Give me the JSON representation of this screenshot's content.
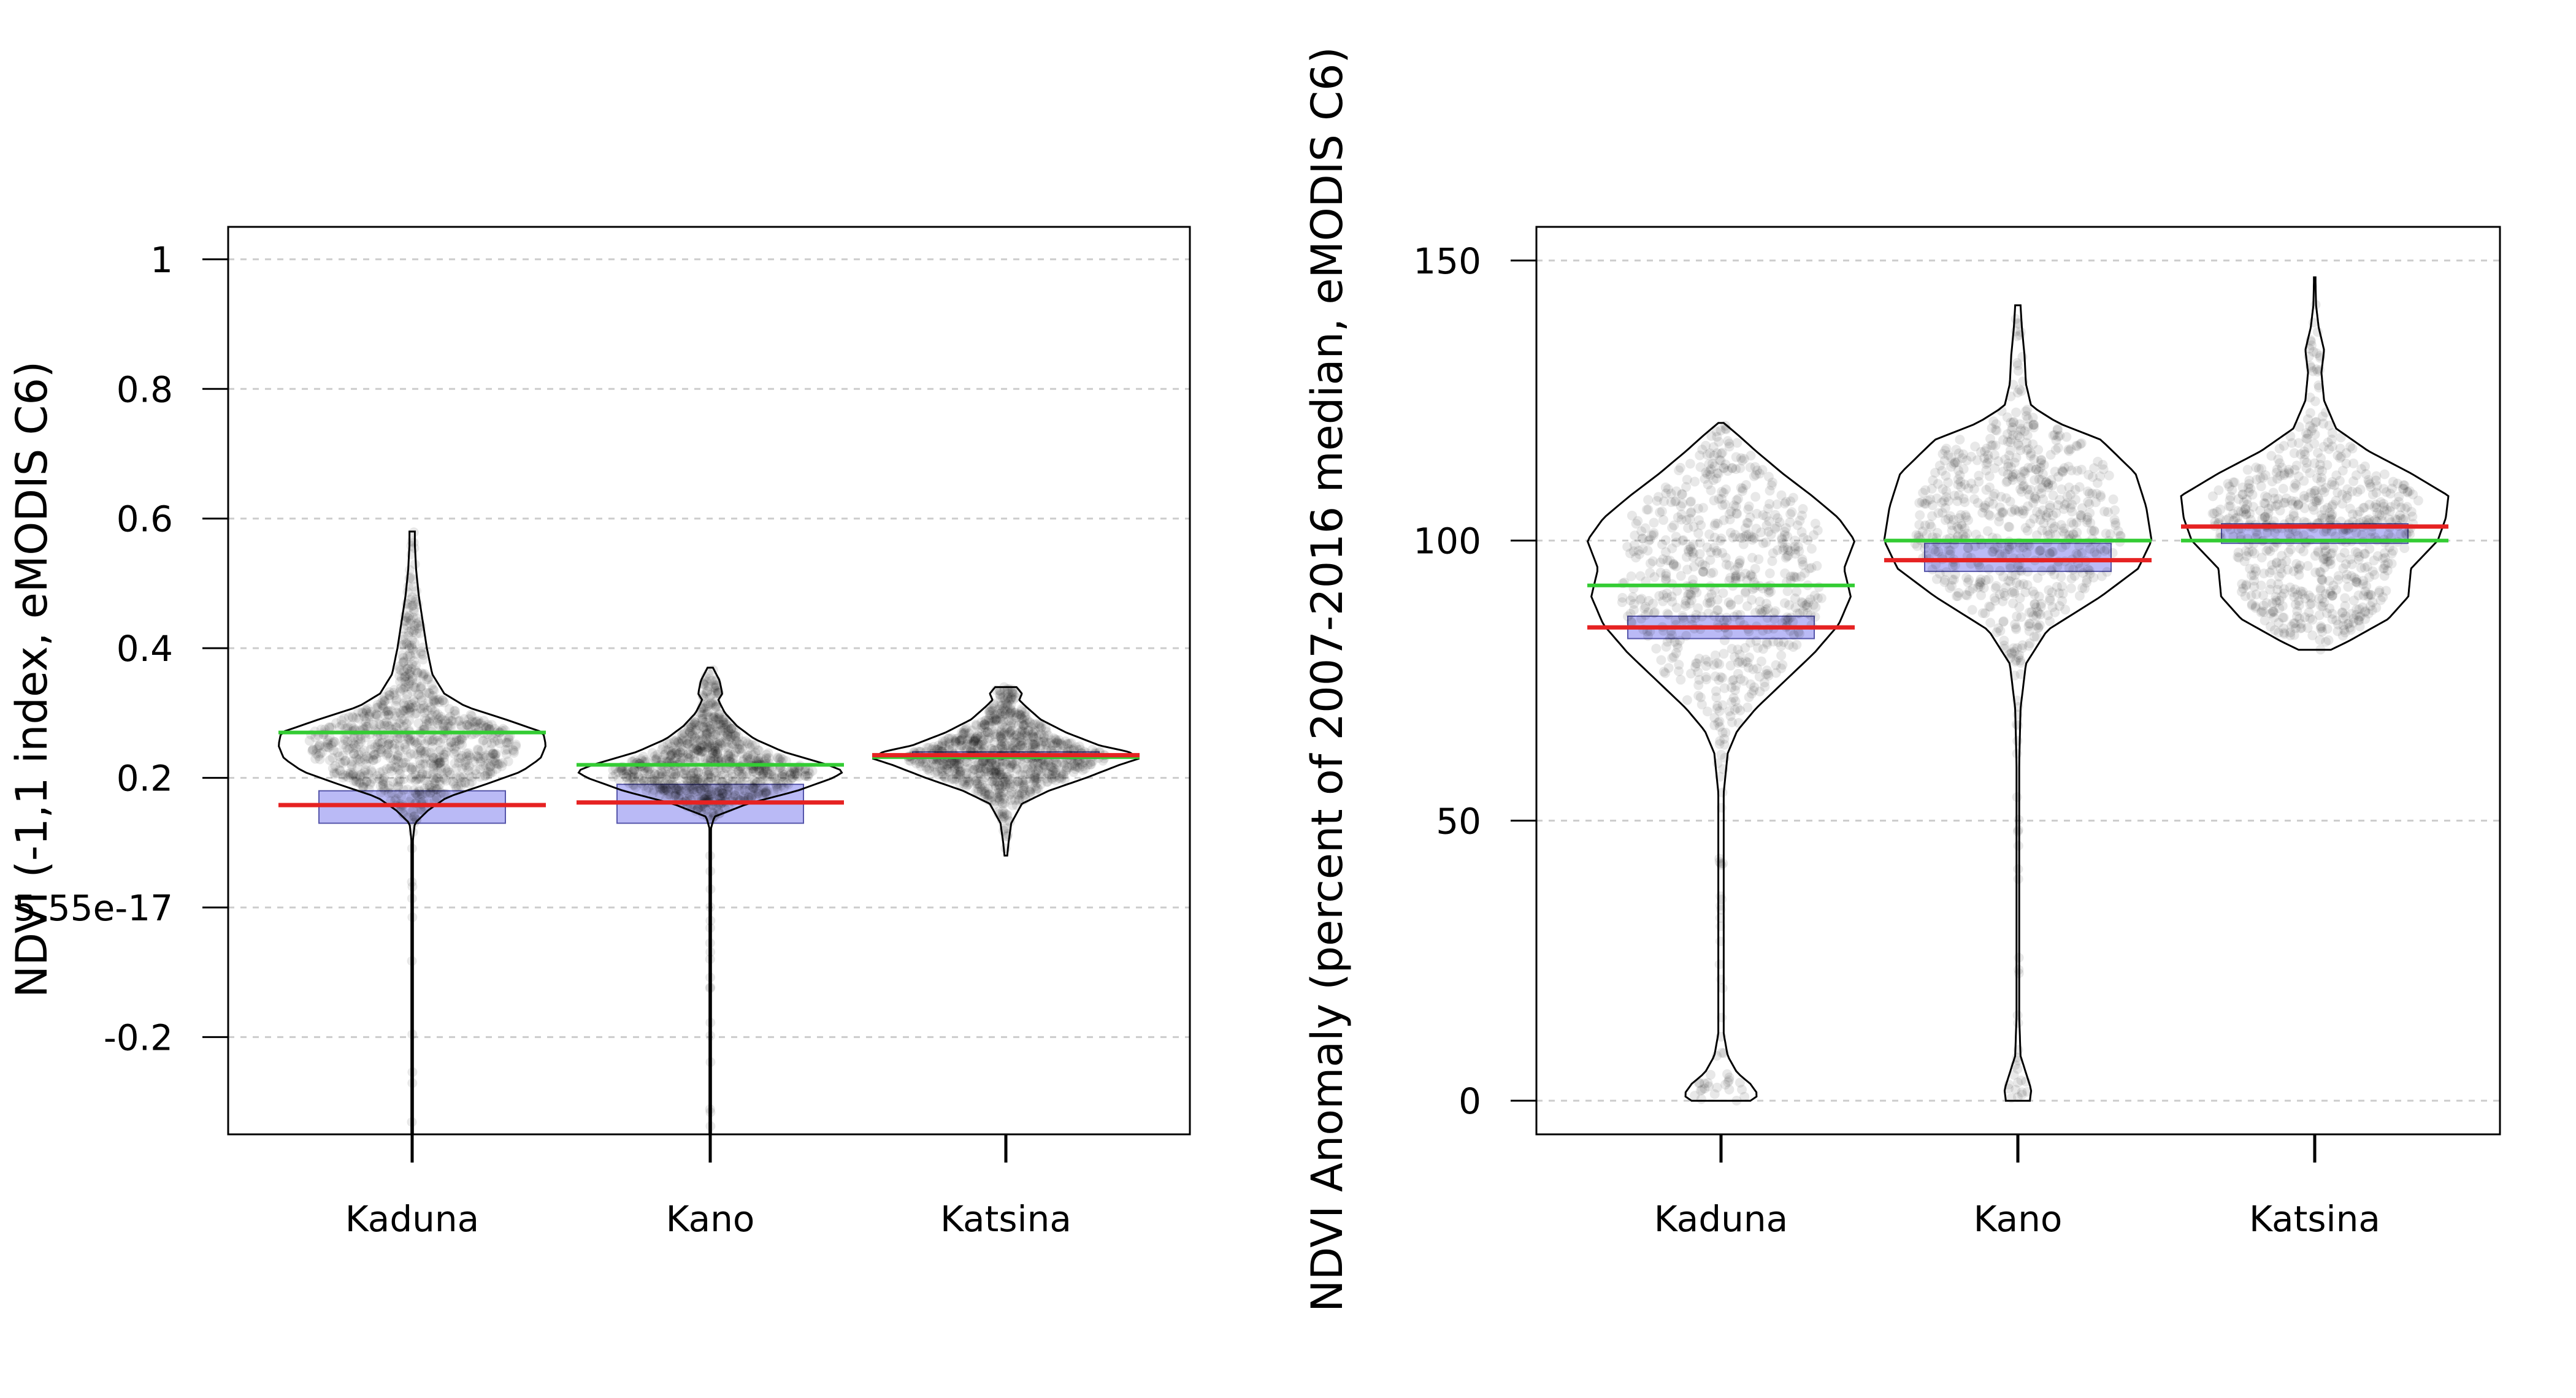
{
  "chart_data": [
    {
      "type": "violin",
      "ylabel": "NDVI (-1,1 index, eMODIS C6)",
      "xlabel": "",
      "title": "",
      "ylim": [
        -0.35,
        1.05
      ],
      "yticks": [
        -0.2,
        5.55e-17,
        0.2,
        0.4,
        0.6,
        0.8,
        1
      ],
      "ytick_labels": [
        "-0.2",
        "5.55e-17",
        "0.2",
        "0.4",
        "0.6",
        "0.8",
        "1"
      ],
      "grid": "horizontal dashed",
      "categories": [
        "Kaduna",
        "Kano",
        "Katsina"
      ],
      "series": [
        {
          "category": "Kaduna",
          "mean": 0.27,
          "current": 0.158,
          "box": [
            0.13,
            0.18
          ],
          "range": [
            -0.35,
            0.58
          ],
          "profile": [
            [
              -0.35,
              0.003
            ],
            [
              0.1,
              0.003
            ],
            [
              0.13,
              0.02
            ],
            [
              0.14,
              0.07
            ],
            [
              0.15,
              0.12
            ],
            [
              0.17,
              0.26
            ],
            [
              0.19,
              0.55
            ],
            [
              0.21,
              0.82
            ],
            [
              0.23,
              0.96
            ],
            [
              0.25,
              1.0
            ],
            [
              0.27,
              0.98
            ],
            [
              0.29,
              0.7
            ],
            [
              0.31,
              0.4
            ],
            [
              0.33,
              0.24
            ],
            [
              0.36,
              0.15
            ],
            [
              0.4,
              0.11
            ],
            [
              0.44,
              0.08
            ],
            [
              0.48,
              0.05
            ],
            [
              0.52,
              0.03
            ],
            [
              0.56,
              0.02
            ],
            [
              0.58,
              0.02
            ]
          ]
        },
        {
          "category": "Kano",
          "mean": 0.22,
          "current": 0.162,
          "box": [
            0.13,
            0.19
          ],
          "range": [
            -0.35,
            0.37
          ],
          "profile": [
            [
              -0.35,
              0.003
            ],
            [
              0.12,
              0.003
            ],
            [
              0.14,
              0.03
            ],
            [
              0.16,
              0.28
            ],
            [
              0.18,
              0.65
            ],
            [
              0.2,
              0.92
            ],
            [
              0.21,
              1.0
            ],
            [
              0.22,
              0.88
            ],
            [
              0.24,
              0.55
            ],
            [
              0.26,
              0.33
            ],
            [
              0.28,
              0.2
            ],
            [
              0.3,
              0.11
            ],
            [
              0.32,
              0.06
            ],
            [
              0.33,
              0.09
            ],
            [
              0.35,
              0.07
            ],
            [
              0.37,
              0.02
            ]
          ]
        },
        {
          "category": "Katsina",
          "mean": 0.232,
          "current": 0.235,
          "box": [
            0.23,
            0.24
          ],
          "range": [
            0.08,
            0.34
          ],
          "profile": [
            [
              0.08,
              0.01
            ],
            [
              0.1,
              0.02
            ],
            [
              0.13,
              0.04
            ],
            [
              0.16,
              0.12
            ],
            [
              0.18,
              0.32
            ],
            [
              0.2,
              0.6
            ],
            [
              0.22,
              0.85
            ],
            [
              0.23,
              1.0
            ],
            [
              0.24,
              0.92
            ],
            [
              0.25,
              0.7
            ],
            [
              0.27,
              0.45
            ],
            [
              0.29,
              0.26
            ],
            [
              0.31,
              0.15
            ],
            [
              0.32,
              0.1
            ],
            [
              0.33,
              0.12
            ],
            [
              0.34,
              0.08
            ]
          ]
        }
      ]
    },
    {
      "type": "violin",
      "ylabel": "NDVI Anomaly (percent of 2007-2016 median, eMODIS C6)",
      "xlabel": "",
      "title": "",
      "ylim": [
        -6,
        156
      ],
      "yticks": [
        0,
        50,
        100,
        150
      ],
      "ytick_labels": [
        "0",
        "50",
        "100",
        "150"
      ],
      "grid": "horizontal dashed",
      "categories": [
        "Kaduna",
        "Kano",
        "Katsina"
      ],
      "series": [
        {
          "category": "Kaduna",
          "mean": 92,
          "current": 84.5,
          "box": [
            82.5,
            86.5
          ],
          "range": [
            0,
            121
          ],
          "profile": [
            [
              0,
              0.22
            ],
            [
              1,
              0.28
            ],
            [
              3,
              0.22
            ],
            [
              5,
              0.12
            ],
            [
              8,
              0.05
            ],
            [
              12,
              0.02
            ],
            [
              40,
              0.02
            ],
            [
              55,
              0.02
            ],
            [
              62,
              0.05
            ],
            [
              66,
              0.12
            ],
            [
              70,
              0.26
            ],
            [
              75,
              0.48
            ],
            [
              80,
              0.7
            ],
            [
              85,
              0.88
            ],
            [
              90,
              0.97
            ],
            [
              95,
              0.92
            ],
            [
              100,
              1.0
            ],
            [
              104,
              0.88
            ],
            [
              108,
              0.68
            ],
            [
              112,
              0.46
            ],
            [
              116,
              0.26
            ],
            [
              119,
              0.12
            ],
            [
              121,
              0.02
            ]
          ]
        },
        {
          "category": "Kano",
          "mean": 100,
          "current": 96.5,
          "box": [
            94.5,
            99.5
          ],
          "range": [
            0,
            142
          ],
          "profile": [
            [
              0,
              0.09
            ],
            [
              2,
              0.1
            ],
            [
              5,
              0.06
            ],
            [
              8,
              0.02
            ],
            [
              15,
              0.01
            ],
            [
              60,
              0.01
            ],
            [
              70,
              0.02
            ],
            [
              78,
              0.06
            ],
            [
              84,
              0.22
            ],
            [
              90,
              0.62
            ],
            [
              95,
              0.9
            ],
            [
              100,
              1.0
            ],
            [
              106,
              0.96
            ],
            [
              112,
              0.88
            ],
            [
              118,
              0.62
            ],
            [
              121,
              0.3
            ],
            [
              124,
              0.1
            ],
            [
              128,
              0.06
            ],
            [
              133,
              0.05
            ],
            [
              138,
              0.03
            ],
            [
              142,
              0.02
            ]
          ]
        },
        {
          "category": "Katsina",
          "mean": 100,
          "current": 102.5,
          "box": [
            99.5,
            103
          ],
          "range": [
            80.5,
            147
          ],
          "profile": [
            [
              80.5,
              0.12
            ],
            [
              82,
              0.25
            ],
            [
              86,
              0.55
            ],
            [
              90,
              0.7
            ],
            [
              95,
              0.72
            ],
            [
              100,
              0.92
            ],
            [
              104,
              0.98
            ],
            [
              108,
              1.0
            ],
            [
              112,
              0.72
            ],
            [
              116,
              0.4
            ],
            [
              120,
              0.16
            ],
            [
              125,
              0.07
            ],
            [
              130,
              0.05
            ],
            [
              134,
              0.07
            ],
            [
              138,
              0.03
            ],
            [
              142,
              0.01
            ],
            [
              147,
              0.005
            ]
          ]
        }
      ]
    }
  ]
}
